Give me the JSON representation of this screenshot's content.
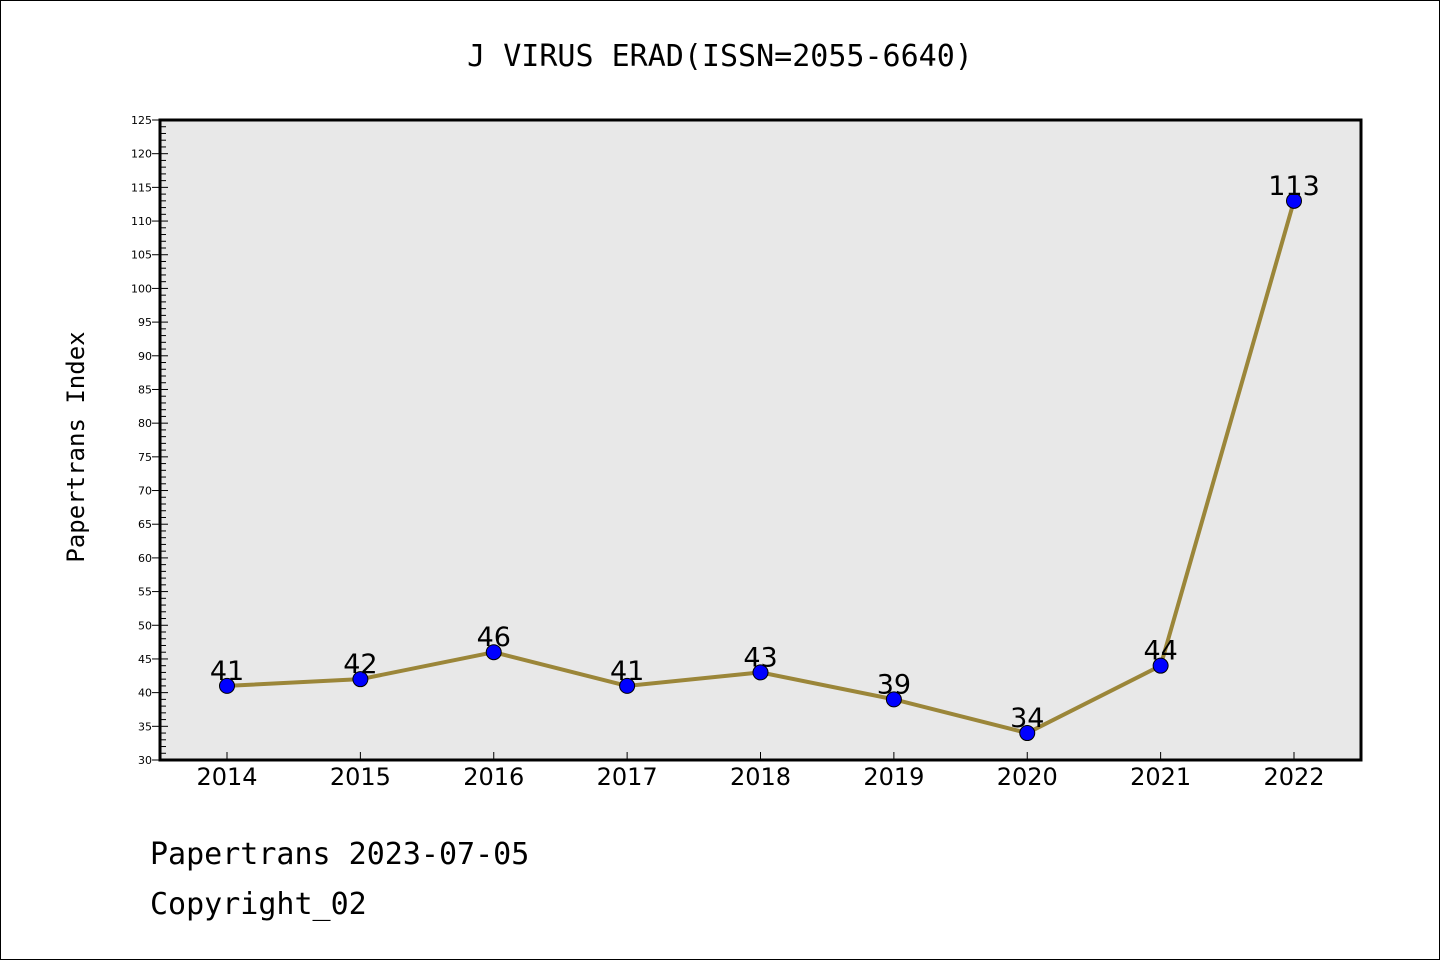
{
  "chart_data": {
    "type": "line",
    "title": "J VIRUS ERAD(ISSN=2055-6640)",
    "ylabel": "Papertrans Index",
    "xlabel": "",
    "categories": [
      "2014",
      "2015",
      "2016",
      "2017",
      "2018",
      "2019",
      "2020",
      "2021",
      "2022"
    ],
    "series": [
      {
        "values": [
          41,
          42,
          46,
          41,
          43,
          39,
          34,
          44,
          113
        ]
      }
    ],
    "data_labels": [
      "41",
      "42",
      "46",
      "41",
      "43",
      "39",
      "34",
      "44",
      "113"
    ],
    "ylim": [
      30,
      125
    ],
    "yticks": [
      "30",
      "35",
      "40",
      "45",
      "50",
      "55",
      "60",
      "65",
      "70",
      "75",
      "80",
      "85",
      "90",
      "95",
      "100",
      "105",
      "110",
      "115",
      "120",
      "125"
    ],
    "grid": false,
    "legend": "none",
    "colors": {
      "line": "#9b8639",
      "marker": "#0000ff",
      "plot_bg": "#e8e8e8"
    }
  },
  "footer": {
    "line1": "Papertrans 2023-07-05",
    "line2": "Copyright_02"
  }
}
